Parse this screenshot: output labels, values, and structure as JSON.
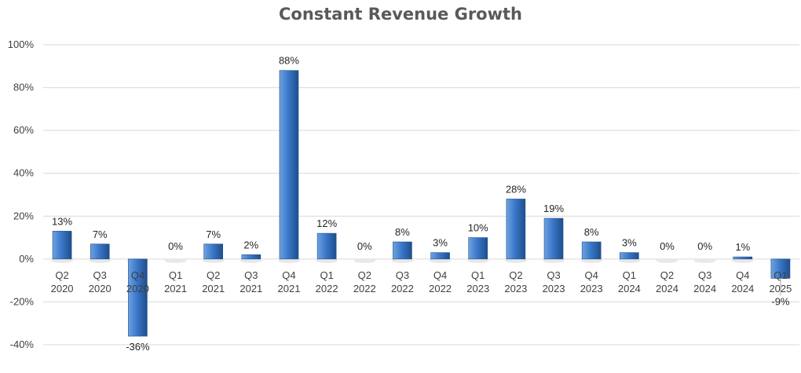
{
  "chart_data": {
    "type": "bar",
    "title": "Constant Revenue Growth",
    "xlabel": "",
    "ylabel": "",
    "ylim": [
      -40,
      100
    ],
    "yticks": [
      100,
      80,
      60,
      40,
      20,
      0,
      -20,
      -40
    ],
    "ytick_labels": [
      "100%",
      "80%",
      "60%",
      "40%",
      "20%",
      "0%",
      "-20%",
      "-40%"
    ],
    "grid": true,
    "legend": "none",
    "bar_color": "#3A78C9",
    "categories": [
      {
        "q": "Q2",
        "y": "2020"
      },
      {
        "q": "Q3",
        "y": "2020"
      },
      {
        "q": "Q4",
        "y": "2020"
      },
      {
        "q": "Q1",
        "y": "2021"
      },
      {
        "q": "Q2",
        "y": "2021"
      },
      {
        "q": "Q3",
        "y": "2021"
      },
      {
        "q": "Q4",
        "y": "2021"
      },
      {
        "q": "Q1",
        "y": "2022"
      },
      {
        "q": "Q2",
        "y": "2022"
      },
      {
        "q": "Q3",
        "y": "2022"
      },
      {
        "q": "Q4",
        "y": "2022"
      },
      {
        "q": "Q1",
        "y": "2023"
      },
      {
        "q": "Q2",
        "y": "2023"
      },
      {
        "q": "Q3",
        "y": "2023"
      },
      {
        "q": "Q4",
        "y": "2023"
      },
      {
        "q": "Q1",
        "y": "2024"
      },
      {
        "q": "Q2",
        "y": "2024"
      },
      {
        "q": "Q3",
        "y": "2024"
      },
      {
        "q": "Q4",
        "y": "2024"
      },
      {
        "q": "Q1",
        "y": "2025"
      }
    ],
    "values": [
      13,
      7,
      -36,
      0,
      7,
      2,
      88,
      12,
      0,
      8,
      3,
      10,
      28,
      19,
      8,
      3,
      0,
      0,
      1,
      -9
    ],
    "data_labels": [
      "13%",
      "7%",
      "-36%",
      "0%",
      "7%",
      "2%",
      "88%",
      "12%",
      "0%",
      "8%",
      "3%",
      "10%",
      "28%",
      "19%",
      "8%",
      "3%",
      "0%",
      "0%",
      "1%",
      "-9%"
    ]
  }
}
